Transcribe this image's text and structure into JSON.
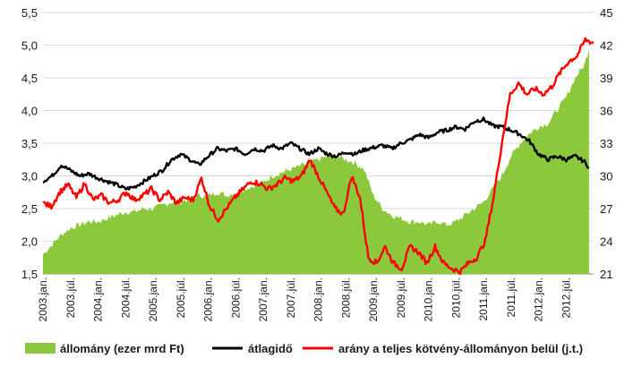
{
  "chart_data": {
    "type": "area+line",
    "left_axis": {
      "min": 1.5,
      "max": 5.5,
      "ticks": [
        "1,5",
        "2,0",
        "2,5",
        "3,0",
        "3,5",
        "4,0",
        "4,5",
        "5,0",
        "5,5"
      ]
    },
    "right_axis": {
      "min": 21,
      "max": 45,
      "ticks": [
        "21",
        "24",
        "27",
        "30",
        "33",
        "36",
        "39",
        "42",
        "45"
      ]
    },
    "x_range": [
      "2003.jan.",
      "2012.dec."
    ],
    "grid": true,
    "legend_position": "bottom",
    "x_labels": [
      "2003.jan.",
      "2003.júl.",
      "2004.jan.",
      "2004.júl.",
      "2005.jan.",
      "2005.júl.",
      "2006.jan.",
      "2006.júl.",
      "2007.jan.",
      "2007.júl.",
      "2008.jan.",
      "2008.júl.",
      "2009.jan.",
      "2009.júl.",
      "2010.jan.",
      "2010.júl.",
      "2011.jan.",
      "2011.júl.",
      "2012.jan.",
      "2012.júl."
    ],
    "series": [
      {
        "name": "állomány (ezer mrd Ft)",
        "type": "area",
        "axis": "left",
        "color": "#8cc83c",
        "points": [
          [
            0,
            1.8
          ],
          [
            2,
            1.95
          ],
          [
            4,
            2.1
          ],
          [
            6,
            2.2
          ],
          [
            8,
            2.25
          ],
          [
            10,
            2.3
          ],
          [
            12,
            2.3
          ],
          [
            14,
            2.35
          ],
          [
            16,
            2.4
          ],
          [
            18,
            2.45
          ],
          [
            20,
            2.45
          ],
          [
            22,
            2.5
          ],
          [
            24,
            2.5
          ],
          [
            26,
            2.55
          ],
          [
            28,
            2.6
          ],
          [
            30,
            2.6
          ],
          [
            32,
            2.65
          ],
          [
            34,
            2.7
          ],
          [
            36,
            2.7
          ],
          [
            38,
            2.75
          ],
          [
            40,
            2.7
          ],
          [
            42,
            2.75
          ],
          [
            44,
            2.8
          ],
          [
            46,
            2.85
          ],
          [
            48,
            2.9
          ],
          [
            50,
            3.0
          ],
          [
            52,
            3.05
          ],
          [
            54,
            3.1
          ],
          [
            56,
            3.15
          ],
          [
            58,
            3.2
          ],
          [
            60,
            3.25
          ],
          [
            62,
            3.3
          ],
          [
            64,
            3.3
          ],
          [
            66,
            3.25
          ],
          [
            68,
            3.2
          ],
          [
            70,
            3.1
          ],
          [
            72,
            2.7
          ],
          [
            74,
            2.5
          ],
          [
            76,
            2.4
          ],
          [
            78,
            2.35
          ],
          [
            80,
            2.3
          ],
          [
            82,
            2.3
          ],
          [
            84,
            2.25
          ],
          [
            86,
            2.3
          ],
          [
            88,
            2.25
          ],
          [
            90,
            2.3
          ],
          [
            92,
            2.4
          ],
          [
            94,
            2.5
          ],
          [
            96,
            2.6
          ],
          [
            98,
            2.8
          ],
          [
            100,
            3.0
          ],
          [
            102,
            3.3
          ],
          [
            104,
            3.5
          ],
          [
            106,
            3.65
          ],
          [
            108,
            3.75
          ],
          [
            110,
            3.8
          ],
          [
            112,
            4.0
          ],
          [
            114,
            4.2
          ],
          [
            116,
            4.5
          ],
          [
            118,
            4.7
          ],
          [
            119,
            4.95
          ]
        ]
      },
      {
        "name": "átlagidő",
        "type": "line",
        "axis": "right",
        "color": "#000000",
        "points": [
          [
            0,
            29.5
          ],
          [
            2,
            30.0
          ],
          [
            4,
            31.0
          ],
          [
            6,
            30.5
          ],
          [
            8,
            30.0
          ],
          [
            10,
            30.2
          ],
          [
            12,
            29.8
          ],
          [
            14,
            29.5
          ],
          [
            16,
            29.2
          ],
          [
            18,
            28.8
          ],
          [
            20,
            29.0
          ],
          [
            22,
            29.5
          ],
          [
            24,
            30.0
          ],
          [
            26,
            30.5
          ],
          [
            28,
            31.5
          ],
          [
            30,
            32.0
          ],
          [
            32,
            31.5
          ],
          [
            34,
            31.0
          ],
          [
            36,
            31.8
          ],
          [
            38,
            32.5
          ],
          [
            40,
            32.3
          ],
          [
            42,
            32.5
          ],
          [
            44,
            32.0
          ],
          [
            46,
            32.5
          ],
          [
            48,
            32.3
          ],
          [
            50,
            32.8
          ],
          [
            52,
            32.5
          ],
          [
            54,
            33.0
          ],
          [
            56,
            32.5
          ],
          [
            58,
            32.0
          ],
          [
            60,
            32.5
          ],
          [
            62,
            32.0
          ],
          [
            64,
            31.8
          ],
          [
            66,
            32.2
          ],
          [
            68,
            32.0
          ],
          [
            70,
            32.4
          ],
          [
            72,
            32.6
          ],
          [
            74,
            32.8
          ],
          [
            76,
            32.5
          ],
          [
            78,
            33.0
          ],
          [
            80,
            33.3
          ],
          [
            82,
            33.8
          ],
          [
            84,
            33.5
          ],
          [
            86,
            34.0
          ],
          [
            88,
            34.2
          ],
          [
            90,
            34.5
          ],
          [
            92,
            34.3
          ],
          [
            94,
            35.0
          ],
          [
            96,
            35.2
          ],
          [
            98,
            34.6
          ],
          [
            100,
            34.5
          ],
          [
            102,
            34.2
          ],
          [
            104,
            33.8
          ],
          [
            106,
            33.2
          ],
          [
            108,
            32.0
          ],
          [
            110,
            31.5
          ],
          [
            112,
            31.8
          ],
          [
            114,
            31.5
          ],
          [
            116,
            31.8
          ],
          [
            118,
            31.3
          ],
          [
            119,
            30.8
          ]
        ]
      },
      {
        "name": "arány a teljes kötvény-állományon belül (j.t.)",
        "type": "line",
        "axis": "right",
        "color": "#ff0000",
        "points": [
          [
            0,
            27.5
          ],
          [
            2,
            27.2
          ],
          [
            4,
            28.5
          ],
          [
            6,
            29.2
          ],
          [
            8,
            28.0
          ],
          [
            10,
            29.3
          ],
          [
            12,
            27.8
          ],
          [
            14,
            28.2
          ],
          [
            16,
            27.5
          ],
          [
            18,
            27.8
          ],
          [
            20,
            28.5
          ],
          [
            22,
            27.8
          ],
          [
            24,
            28.2
          ],
          [
            26,
            28.8
          ],
          [
            28,
            27.8
          ],
          [
            30,
            28.5
          ],
          [
            32,
            27.5
          ],
          [
            34,
            28.0
          ],
          [
            36,
            27.8
          ],
          [
            38,
            29.8
          ],
          [
            40,
            27.2
          ],
          [
            42,
            26.0
          ],
          [
            44,
            27.0
          ],
          [
            46,
            28.0
          ],
          [
            48,
            28.8
          ],
          [
            50,
            29.5
          ],
          [
            52,
            29.3
          ],
          [
            54,
            28.8
          ],
          [
            56,
            29.2
          ],
          [
            58,
            29.8
          ],
          [
            60,
            29.5
          ],
          [
            62,
            30.0
          ],
          [
            64,
            31.5
          ],
          [
            66,
            30.0
          ],
          [
            68,
            28.5
          ],
          [
            70,
            27.0
          ],
          [
            72,
            26.5
          ],
          [
            74,
            30.0
          ],
          [
            76,
            28.0
          ],
          [
            78,
            22.5
          ],
          [
            80,
            22.0
          ],
          [
            82,
            23.5
          ],
          [
            84,
            22.0
          ],
          [
            86,
            21.5
          ],
          [
            88,
            23.5
          ],
          [
            90,
            23.0
          ],
          [
            92,
            22.0
          ],
          [
            94,
            23.5
          ],
          [
            96,
            22.0
          ],
          [
            98,
            21.5
          ],
          [
            100,
            21.2
          ],
          [
            102,
            22.0
          ],
          [
            104,
            22.5
          ],
          [
            106,
            24.0
          ],
          [
            108,
            28.0
          ],
          [
            110,
            33.0
          ],
          [
            112,
            37.5
          ],
          [
            114,
            38.5
          ],
          [
            116,
            37.5
          ],
          [
            118,
            38.0
          ],
          [
            120,
            37.5
          ],
          [
            122,
            38.2
          ],
          [
            124,
            39.5
          ],
          [
            126,
            40.5
          ],
          [
            128,
            41.0
          ],
          [
            130,
            42.5
          ],
          [
            132,
            42.2
          ]
        ]
      }
    ]
  }
}
